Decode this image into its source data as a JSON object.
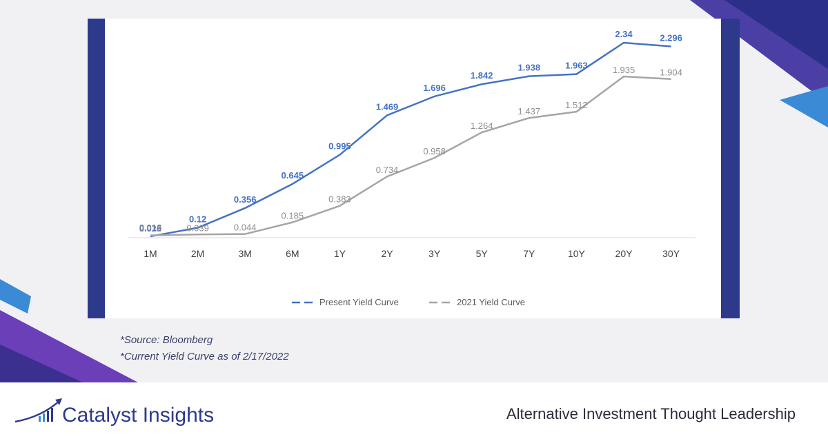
{
  "chart_data": {
    "type": "line",
    "categories": [
      "1M",
      "2M",
      "3M",
      "6M",
      "1Y",
      "2Y",
      "3Y",
      "5Y",
      "7Y",
      "10Y",
      "20Y",
      "30Y"
    ],
    "series": [
      {
        "name": "Present Yield Curve",
        "color": "#4472c4",
        "values": [
          0.016,
          0.12,
          0.356,
          0.645,
          0.995,
          1.469,
          1.696,
          1.842,
          1.938,
          1.963,
          2.34,
          2.296
        ]
      },
      {
        "name": "2021 Yield Curve",
        "color": "#a5a5a5",
        "values": [
          0.028,
          0.039,
          0.044,
          0.185,
          0.383,
          0.734,
          0.958,
          1.264,
          1.437,
          1.512,
          1.935,
          1.904
        ]
      }
    ]
  },
  "notes": [
    "*Source: Bloomberg",
    "*Current Yield Curve as of 2/17/2022"
  ],
  "footer": {
    "brand": "Catalyst Insights",
    "tagline": "Alternative Investment Thought Leadership"
  }
}
